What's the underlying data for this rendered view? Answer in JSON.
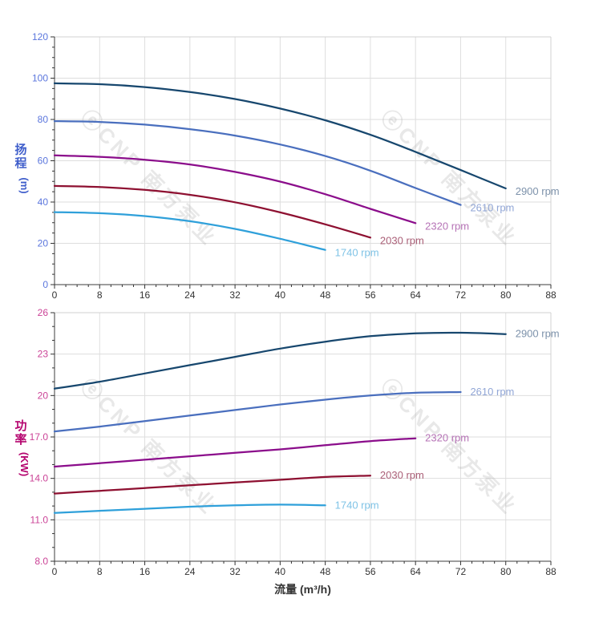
{
  "watermark": {
    "text": "ⓔCNP 南方泵业",
    "color": "#9a9a9a",
    "opacity": 0.22
  },
  "palette": {
    "grid": "#dedede",
    "border": "#d0d0d0",
    "spine": "#3c3c3c",
    "tick": "#333333",
    "x_tick_label": "#333333"
  },
  "chart_data": [
    {
      "type": "line",
      "id": "head-curve",
      "title": "",
      "xlabel": "",
      "ylabel": {
        "text": "扬程",
        "unit": "(m)"
      },
      "ylabel_color": "#3f5ecb",
      "ytick_label_color": "#5b76dd",
      "xlim": [
        0,
        88
      ],
      "ylim": [
        0,
        120
      ],
      "xticks": [
        0,
        8,
        16,
        24,
        32,
        40,
        48,
        56,
        64,
        72,
        80,
        88
      ],
      "xtick_labels": [
        "0",
        "8",
        "16",
        "24",
        "32",
        "40",
        "48",
        "56",
        "64",
        "72",
        "80",
        "88"
      ],
      "yticks": [
        0,
        20,
        40,
        60,
        80,
        100,
        120
      ],
      "ytick_labels": [
        "0",
        "20",
        "40",
        "60",
        "80",
        "100",
        "120"
      ],
      "x_minor_step": 2,
      "y_minor_step": 5,
      "grid": true,
      "legend_position": "line-end",
      "series": [
        {
          "name": "2900 rpm",
          "color": "#17476e",
          "label_color": "#7d92ab",
          "x": [
            0,
            8,
            16,
            24,
            32,
            40,
            48,
            56,
            64,
            72,
            80
          ],
          "y": [
            97.5,
            97.1,
            95.7,
            93.3,
            89.9,
            85.3,
            79.6,
            72.6,
            64.3,
            55.5,
            46.6
          ]
        },
        {
          "name": "2610 rpm",
          "color": "#4a6fbe",
          "label_color": "#91a6d6",
          "x": [
            0,
            8,
            16,
            24,
            32,
            40,
            48,
            56,
            64,
            72
          ],
          "y": [
            79.2,
            78.8,
            77.5,
            75.3,
            72.2,
            67.9,
            62.3,
            55.2,
            46.8,
            38.6
          ]
        },
        {
          "name": "2320 rpm",
          "color": "#8b0d8b",
          "label_color": "#b673b6",
          "x": [
            0,
            8,
            16,
            24,
            32,
            40,
            48,
            56,
            64
          ],
          "y": [
            62.6,
            61.9,
            60.5,
            58.2,
            54.6,
            49.9,
            43.8,
            36.7,
            29.8
          ]
        },
        {
          "name": "2030 rpm",
          "color": "#8e1031",
          "label_color": "#aa5f77",
          "x": [
            0,
            8,
            16,
            24,
            32,
            40,
            48,
            56
          ],
          "y": [
            47.8,
            47.3,
            45.9,
            43.5,
            39.9,
            35.0,
            29.2,
            22.8
          ]
        },
        {
          "name": "1740 rpm",
          "color": "#2fa0da",
          "label_color": "#7fc3e6",
          "x": [
            0,
            8,
            16,
            24,
            32,
            40,
            48
          ],
          "y": [
            35.1,
            34.6,
            33.2,
            30.7,
            27.0,
            22.2,
            16.8
          ]
        }
      ]
    },
    {
      "type": "line",
      "id": "power-curve",
      "title": "",
      "xlabel": "流量 (m³/h)",
      "xlabel_color": "#333333",
      "ylabel": {
        "text": "功率",
        "unit": "(KW)"
      },
      "ylabel_color": "#b5056f",
      "ytick_label_color": "#cb4397",
      "xlim": [
        0,
        88
      ],
      "ylim": [
        8,
        26
      ],
      "xticks": [
        0,
        8,
        16,
        24,
        32,
        40,
        48,
        56,
        64,
        72,
        80,
        88
      ],
      "xtick_labels": [
        "0",
        "8",
        "16",
        "24",
        "32",
        "40",
        "48",
        "56",
        "64",
        "72",
        "80",
        "88"
      ],
      "yticks": [
        8,
        11,
        14,
        17,
        20,
        23,
        26
      ],
      "ytick_labels": [
        "8.0",
        "11.0",
        "14.0",
        "17.0",
        "20",
        "23",
        "26"
      ],
      "x_minor_step": 2,
      "y_minor_step": 1,
      "grid": true,
      "legend_position": "line-end",
      "series": [
        {
          "name": "2900 rpm",
          "color": "#17476e",
          "label_color": "#7d92ab",
          "x": [
            0,
            8,
            16,
            24,
            32,
            40,
            48,
            56,
            64,
            72,
            80
          ],
          "y": [
            20.5,
            21.0,
            21.6,
            22.2,
            22.8,
            23.4,
            23.9,
            24.3,
            24.5,
            24.55,
            24.45
          ]
        },
        {
          "name": "2610 rpm",
          "color": "#4a6fbe",
          "label_color": "#91a6d6",
          "x": [
            0,
            8,
            16,
            24,
            32,
            40,
            48,
            56,
            64,
            72
          ],
          "y": [
            17.4,
            17.75,
            18.15,
            18.55,
            18.95,
            19.35,
            19.7,
            20.0,
            20.2,
            20.25
          ]
        },
        {
          "name": "2320 rpm",
          "color": "#8b0d8b",
          "label_color": "#b673b6",
          "x": [
            0,
            8,
            16,
            24,
            32,
            40,
            48,
            56,
            64
          ],
          "y": [
            14.85,
            15.1,
            15.35,
            15.6,
            15.85,
            16.1,
            16.4,
            16.7,
            16.9
          ]
        },
        {
          "name": "2030 rpm",
          "color": "#8e1031",
          "label_color": "#aa5f77",
          "x": [
            0,
            8,
            16,
            24,
            32,
            40,
            48,
            56
          ],
          "y": [
            12.9,
            13.1,
            13.3,
            13.5,
            13.7,
            13.9,
            14.1,
            14.2
          ]
        },
        {
          "name": "1740 rpm",
          "color": "#2fa0da",
          "label_color": "#7fc3e6",
          "x": [
            0,
            8,
            16,
            24,
            32,
            40,
            48
          ],
          "y": [
            11.5,
            11.65,
            11.8,
            11.95,
            12.05,
            12.1,
            12.05
          ]
        }
      ]
    }
  ]
}
